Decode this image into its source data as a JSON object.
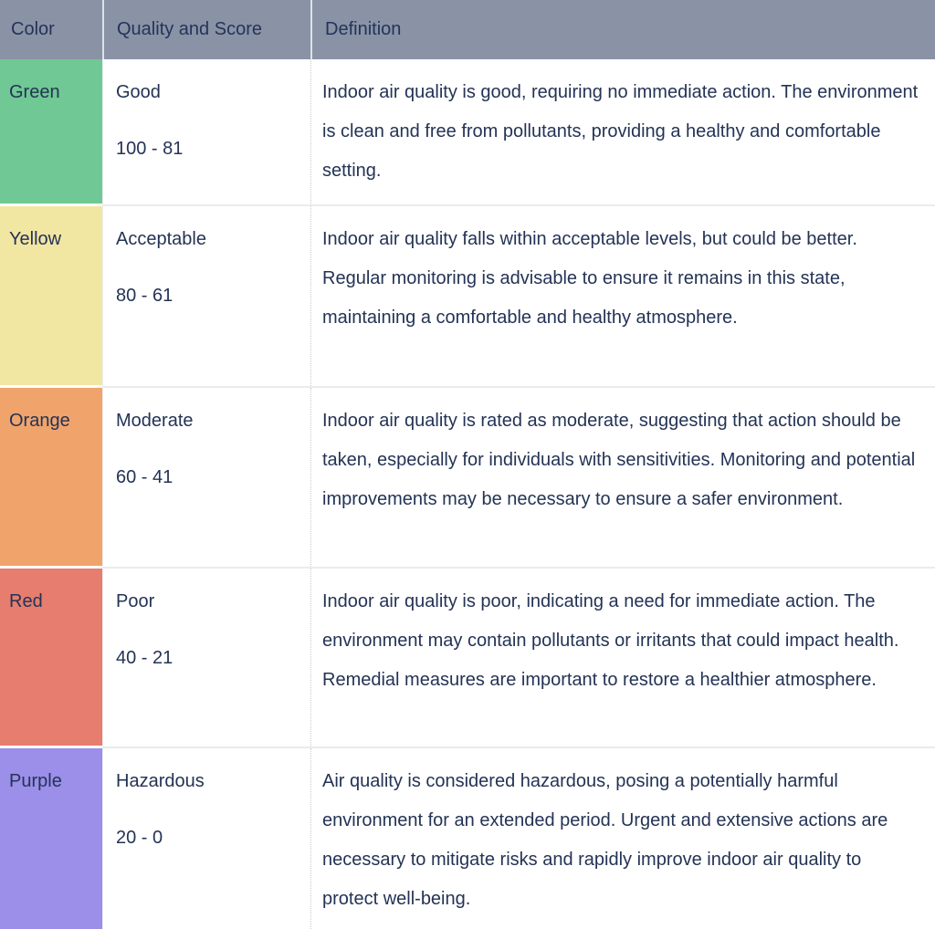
{
  "table": {
    "headers": [
      "Color",
      "Quality and Score",
      "Definition"
    ],
    "rows": [
      {
        "color_name": "Green",
        "color_hex": "#70c894",
        "quality": "Good",
        "score": "100 - 81",
        "definition": "Indoor air quality is good, requiring no immediate action. The environment is clean and free from pollutants, providing a healthy and comfortable setting."
      },
      {
        "color_name": "Yellow",
        "color_hex": "#f2e6a3",
        "quality": "Acceptable",
        "score": "80 - 61",
        "definition": "Indoor air quality falls within acceptable levels, but could be better. Regular monitoring is advisable to ensure it remains in this state, maintaining a comfortable and healthy atmosphere."
      },
      {
        "color_name": "Orange",
        "color_hex": "#f0a46c",
        "quality": "Moderate",
        "score": "60 - 41",
        "definition": "Indoor air quality is rated as moderate, suggesting that action should be taken, especially for individuals with sensitivities. Monitoring and potential improvements may be necessary to ensure a safer environment."
      },
      {
        "color_name": "Red",
        "color_hex": "#e67d6f",
        "quality": "Poor",
        "score": "40 - 21",
        "definition": "Indoor air quality is poor, indicating a need for immediate action. The environment may contain pollutants or irritants that could impact health. Remedial measures are important to restore a healthier atmosphere."
      },
      {
        "color_name": "Purple",
        "color_hex": "#9b8fe9",
        "quality": "Hazardous",
        "score": "20 - 0",
        "definition": "Air quality is considered hazardous, posing a potentially harmful environment for an extended period. Urgent and extensive actions are necessary to mitigate risks and rapidly improve indoor air quality to protect well-being."
      }
    ],
    "colors": {
      "header_bg": "#8993a5",
      "header_text": "#24335a",
      "body_text": "#243355",
      "row_divider": "#ebebeb"
    }
  }
}
